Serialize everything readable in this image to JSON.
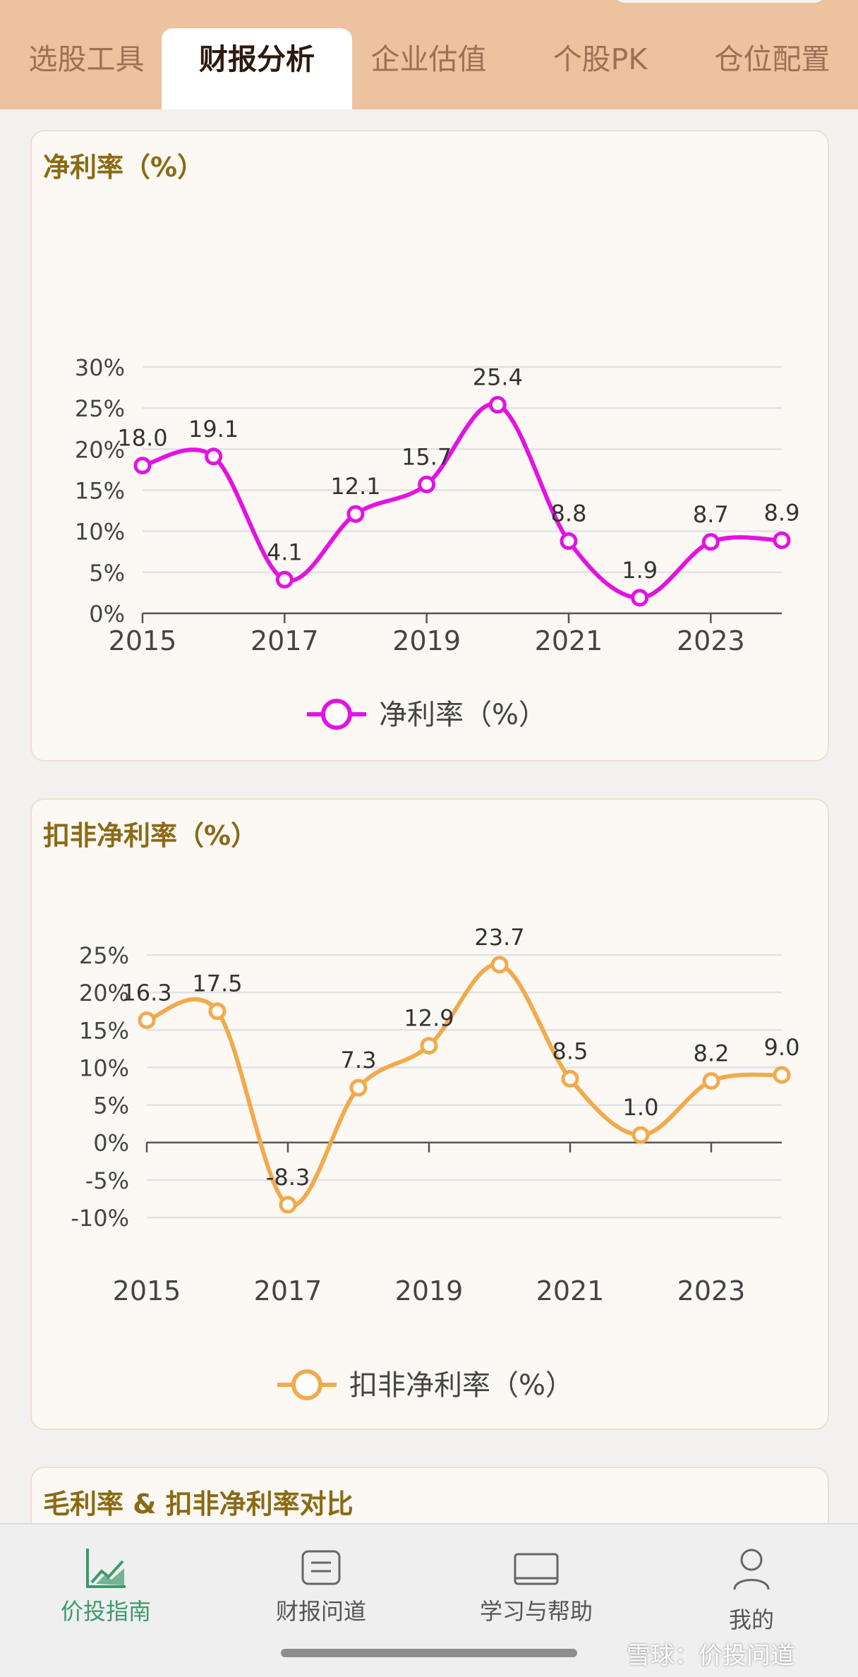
{
  "top_tabs": [
    {
      "label": "选股工具",
      "active": false
    },
    {
      "label": "财报分析",
      "active": true
    },
    {
      "label": "企业估值",
      "active": false
    },
    {
      "label": "个股PK",
      "active": false
    },
    {
      "label": "仓位配置",
      "active": false
    }
  ],
  "chart_data": [
    {
      "type": "line",
      "title": "净利率（%）",
      "x": [
        2015,
        2016,
        2017,
        2018,
        2019,
        2020,
        2021,
        2022,
        2023,
        2024
      ],
      "series": [
        {
          "name": "净利率（%）",
          "color": "#e312e3",
          "values": [
            18.0,
            19.1,
            4.1,
            12.1,
            15.7,
            25.4,
            8.8,
            1.9,
            8.7,
            8.9
          ]
        }
      ],
      "labels": [
        "18.0",
        "19.1",
        "4.1",
        "12.1",
        "15.7",
        "25.4",
        "8.8",
        "1.9",
        "8.7",
        "8.9"
      ],
      "xticks": [
        "2015",
        "2017",
        "2019",
        "2021",
        "2023"
      ],
      "yticks": [
        "0%",
        "5%",
        "10%",
        "15%",
        "20%",
        "25%",
        "30%"
      ],
      "ylim": [
        0,
        30
      ],
      "legend": "bottom"
    },
    {
      "type": "line",
      "title": "扣非净利率（%）",
      "x": [
        2015,
        2016,
        2017,
        2018,
        2019,
        2020,
        2021,
        2022,
        2023,
        2024
      ],
      "series": [
        {
          "name": "扣非净利率（%）",
          "color": "#f2aa4c",
          "values": [
            16.3,
            17.5,
            -8.3,
            7.3,
            12.9,
            23.7,
            8.5,
            1.0,
            8.2,
            9.0
          ]
        }
      ],
      "labels": [
        "16.3",
        "17.5",
        "-8.3",
        "7.3",
        "12.9",
        "23.7",
        "8.5",
        "1.0",
        "8.2",
        "9.0"
      ],
      "xticks": [
        "2015",
        "2017",
        "2019",
        "2021",
        "2023"
      ],
      "yticks": [
        "-10%",
        "-5%",
        "0%",
        "5%",
        "10%",
        "15%",
        "20%",
        "25%"
      ],
      "ylim": [
        -10,
        25
      ],
      "legend": "bottom"
    }
  ],
  "third_card": {
    "title": "毛利率 & 扣非净利率对比"
  },
  "bottom_nav": [
    {
      "label": "价投指南",
      "icon": "trend-chart-icon",
      "active": true
    },
    {
      "label": "财报问道",
      "icon": "message-icon",
      "active": false
    },
    {
      "label": "学习与帮助",
      "icon": "book-icon",
      "active": false
    },
    {
      "label": "我的",
      "icon": "user-icon",
      "active": false
    }
  ],
  "watermark": "雪球：价投问道",
  "colors": {
    "accent": "#ecc29f",
    "title": "#8a6a14",
    "active_nav": "#3c9a6e"
  }
}
